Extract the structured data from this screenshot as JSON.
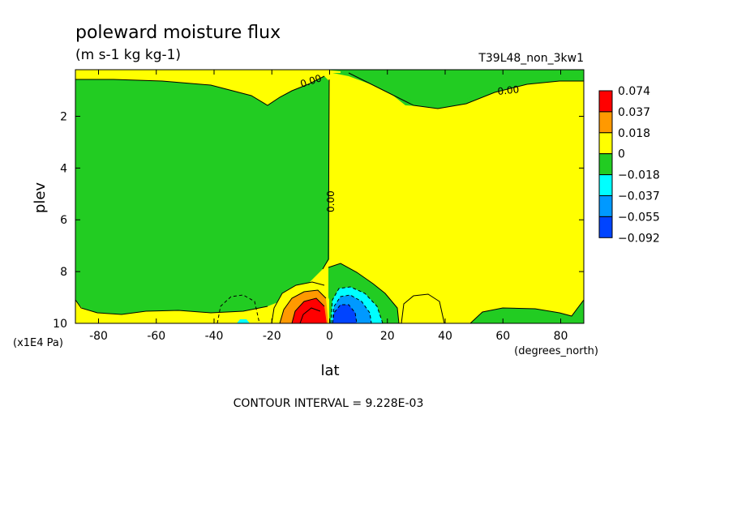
{
  "chart_data": {
    "type": "heatmap",
    "title": "poleward moisture flux",
    "subtitle": "(m s-1 kg kg-1)",
    "run_label": "T39L48_non_3kw1",
    "xlabel": "lat",
    "x_units": "(degrees_north)",
    "ylabel": "plev",
    "y_units": "(x1E4 Pa)",
    "footer": "CONTOUR INTERVAL = 9.228E-03",
    "xlim": [
      -88,
      88
    ],
    "ylim": [
      10,
      0.2
    ],
    "x_ticks": [
      -80,
      -60,
      -40,
      -20,
      0,
      20,
      40,
      60,
      80
    ],
    "x_tick_labels": [
      "-80",
      "-60",
      "-40",
      "-20",
      "0",
      "20",
      "40",
      "60",
      "80"
    ],
    "y_ticks": [
      2,
      4,
      6,
      8,
      10
    ],
    "y_tick_labels": [
      "2",
      "4",
      "6",
      "8",
      "10"
    ],
    "contour_labels": [
      "0.00",
      "0.00",
      "0.00"
    ],
    "colorbar": {
      "labels": [
        "0.074",
        "0.037",
        "0.018",
        "0",
        "−0.018",
        "−0.037",
        "−0.055",
        "−0.092"
      ],
      "colors": [
        "#ff0000",
        "#ff9900",
        "#ffff00",
        "#22cc22",
        "#00ffff",
        "#0099ff",
        "#0044ff"
      ]
    },
    "regions": [
      {
        "name": "negative-sh",
        "level": "-0.018 to 0",
        "color": "#22cc22",
        "lat_range": [
          -88,
          0
        ],
        "plev_range": [
          0.8,
          9.5
        ]
      },
      {
        "name": "positive-nh",
        "level": "0 to 0.018",
        "color": "#ffff00",
        "lat_range": [
          0,
          88
        ],
        "plev_range": [
          0.3,
          10
        ]
      },
      {
        "name": "positive-max-sh",
        "level": "0.037 to 0.074",
        "color": "#ff0000",
        "lat": -5,
        "plev": 9.6
      },
      {
        "name": "negative-min-nh",
        "level": "-0.092 to -0.055",
        "color": "#0044ff",
        "lat": 5,
        "plev": 9.7
      }
    ]
  }
}
